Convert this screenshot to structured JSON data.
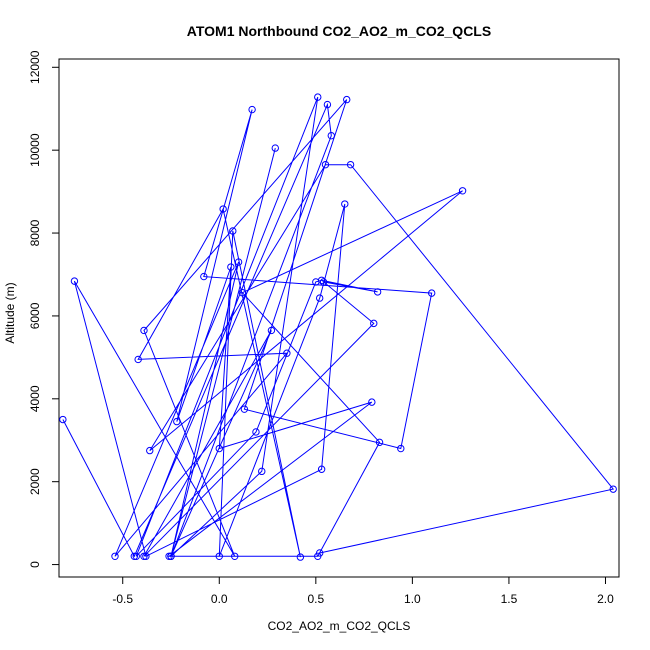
{
  "chart_data": {
    "type": "line",
    "title": "ATOM1 Northbound CO2_AO2_m_CO2_QCLS",
    "xlabel": "CO2_AO2_m_CO2_QCLS",
    "ylabel": "Altitude (m)",
    "xlim": [
      -0.83,
      2.07
    ],
    "ylim": [
      -300,
      12200
    ],
    "xticks": [
      -0.5,
      0.0,
      0.5,
      1.0,
      1.5,
      2.0
    ],
    "xtick_labels": [
      "-0.5",
      "0.0",
      "0.5",
      "1.0",
      "1.5",
      "2.0"
    ],
    "yticks": [
      0,
      2000,
      4000,
      6000,
      8000,
      10000,
      12000
    ],
    "ytick_labels": [
      "0",
      "2000",
      "4000",
      "6000",
      "8000",
      "10000",
      "12000"
    ],
    "grid": false,
    "legend": "none",
    "series": [
      {
        "color": "#0000ff",
        "marker": "open-circle",
        "x": [
          -0.81,
          -0.44,
          0.56,
          0.58,
          -0.25,
          0.29,
          -0.25,
          0.22,
          0.51,
          -0.43,
          0.19,
          0.5,
          0.53,
          0.82,
          0.54,
          0.8,
          -0.39,
          0.27,
          -0.25,
          0.1,
          -0.54,
          0.35,
          -0.42,
          0.02,
          0.42,
          0.07,
          0.0,
          0.52,
          0.65,
          0.53,
          -0.38,
          -0.75,
          0.08,
          -0.39,
          0.66,
          0.13,
          0.94,
          1.1,
          -0.08,
          0.17,
          -0.22,
          0.06,
          0.0,
          0.79,
          -0.26,
          0.51,
          0.83,
          0.12,
          1.26,
          -0.36,
          0.55,
          0.68,
          2.04,
          0.52
        ],
        "y": [
          3500,
          200,
          11100,
          10350,
          200,
          10050,
          200,
          2250,
          11280,
          200,
          3200,
          6820,
          6860,
          6580,
          6820,
          5820,
          200,
          5650,
          200,
          7300,
          200,
          5100,
          4950,
          8580,
          180,
          8050,
          200,
          6430,
          8700,
          2300,
          200,
          6840,
          200,
          5650,
          11220,
          3750,
          2800,
          6550,
          6950,
          10980,
          3450,
          7180,
          2800,
          3920,
          200,
          200,
          2950,
          6560,
          9020,
          2750,
          9650,
          9650,
          1820,
          280
        ]
      }
    ]
  }
}
